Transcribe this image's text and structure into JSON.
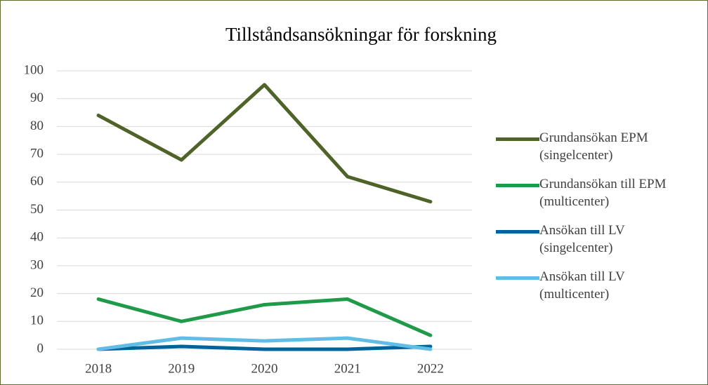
{
  "chart_data": {
    "type": "line",
    "title": "Tillståndsansökningar för forskning",
    "categories": [
      "2018",
      "2019",
      "2020",
      "2021",
      "2022"
    ],
    "series": [
      {
        "name": "Grundansökan EPM (singelcenter)",
        "color": "#4f6228",
        "values": [
          84,
          68,
          95,
          62,
          53
        ]
      },
      {
        "name": "Grundansökan till EPM (multicenter)",
        "color": "#1e9a48",
        "values": [
          18,
          10,
          16,
          18,
          5
        ]
      },
      {
        "name": "Ansökan till LV (singelcenter)",
        "color": "#00639a",
        "values": [
          0,
          1,
          0,
          0,
          1
        ]
      },
      {
        "name": "Ansökan till LV (multicenter)",
        "color": "#62bde6",
        "values": [
          0,
          4,
          3,
          4,
          0
        ]
      }
    ],
    "ylim": [
      0,
      100
    ],
    "yticks": [
      0,
      10,
      20,
      30,
      40,
      50,
      60,
      70,
      80,
      90,
      100
    ],
    "grid": true,
    "legend": "right"
  }
}
